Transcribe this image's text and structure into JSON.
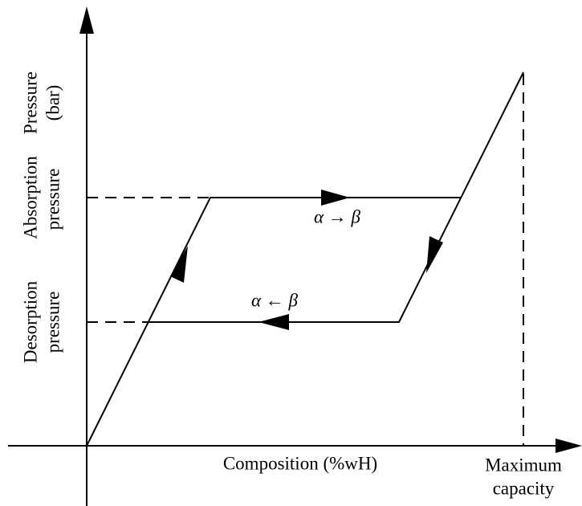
{
  "y_axis_label": {
    "line1": "Pressure",
    "line2": "(bar)"
  },
  "absorption_label": {
    "line1": "Absorption",
    "line2": "pressure"
  },
  "desorption_label": {
    "line1": "Desorption",
    "line2": "pressure"
  },
  "transition_forward": "α → β",
  "transition_backward": "α ← β",
  "x_axis_label": "Composition (%wH)",
  "max_capacity_label": {
    "line1": "Maximum",
    "line2": "capacity"
  }
}
